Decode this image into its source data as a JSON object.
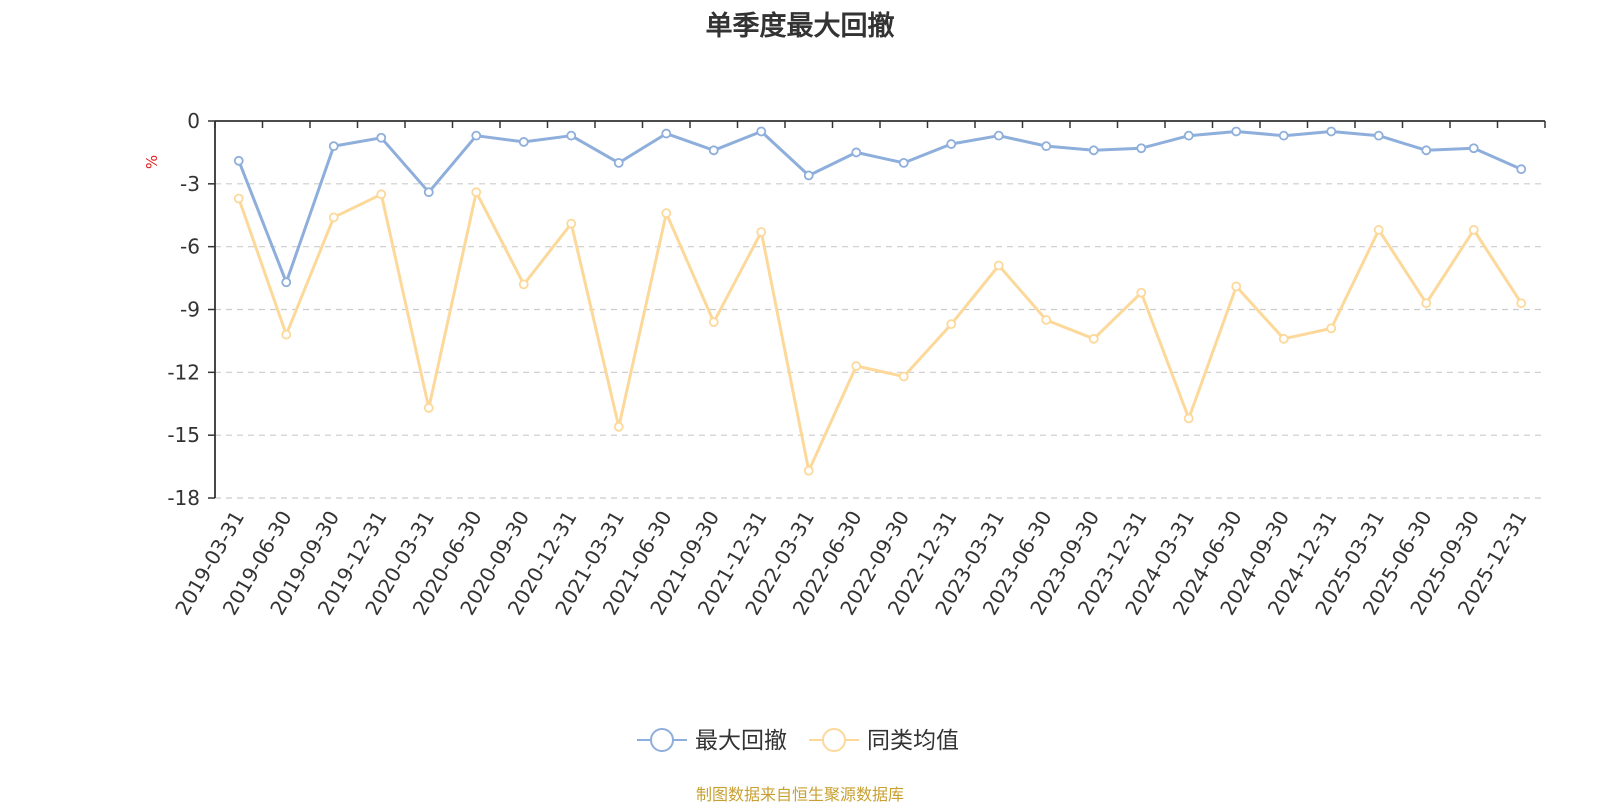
{
  "chart_data": {
    "type": "line",
    "title": "单季度最大回撤",
    "ylabel": "%",
    "ylim": [
      -18,
      0
    ],
    "yticks": [
      0,
      -3,
      -6,
      -9,
      -12,
      -15,
      -18
    ],
    "grid": true,
    "legend_position": "bottom",
    "categories": [
      "2019-03-31",
      "2019-06-30",
      "2019-09-30",
      "2019-12-31",
      "2020-03-31",
      "2020-06-30",
      "2020-09-30",
      "2020-12-31",
      "2021-03-31",
      "2021-06-30",
      "2021-09-30",
      "2021-12-31",
      "2022-03-31",
      "2022-06-30",
      "2022-09-30",
      "2022-12-31",
      "2023-03-31",
      "2023-06-30",
      "2023-09-30",
      "2023-12-31",
      "2024-03-31",
      "2024-06-30",
      "2024-09-30",
      "2024-12-31",
      "2025-03-31",
      "2025-06-30",
      "2025-09-30",
      "2025-12-31"
    ],
    "series": [
      {
        "name": "最大回撤",
        "color": "#8eaedb",
        "values": [
          -1.9,
          -7.7,
          -1.2,
          -0.8,
          -3.4,
          -0.7,
          -1.0,
          -0.7,
          -2.0,
          -0.6,
          -1.4,
          -0.5,
          -2.6,
          -1.5,
          -2.0,
          -1.1,
          -0.7,
          -1.2,
          -1.4,
          -1.3,
          -0.7,
          -0.5,
          -0.7,
          -0.5,
          -0.7,
          -1.4,
          -1.3,
          -2.3
        ]
      },
      {
        "name": "同类均值",
        "color": "#fcd99a",
        "values": [
          -3.7,
          -10.2,
          -4.6,
          -3.5,
          -13.7,
          -3.4,
          -7.8,
          -4.9,
          -14.6,
          -4.4,
          -9.6,
          -5.3,
          -16.7,
          -11.7,
          -12.2,
          -9.7,
          -6.9,
          -9.5,
          -10.4,
          -8.2,
          -14.2,
          -7.9,
          -10.4,
          -9.9,
          -5.2,
          -8.7,
          -5.2,
          -8.7
        ]
      }
    ]
  },
  "footer": {
    "source": "制图数据来自恒生聚源数据库"
  },
  "colors": {
    "ylabel": "#e02020",
    "axis": "#333333",
    "grid": "#cccccc",
    "source": "#c8a032"
  }
}
